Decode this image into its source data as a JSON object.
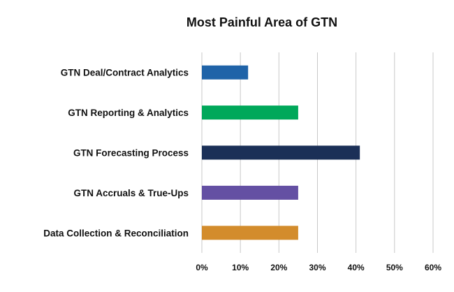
{
  "chart_data": {
    "type": "bar",
    "orientation": "horizontal",
    "title": "Most Painful Area of GTN",
    "categories": [
      "GTN Deal/Contract Analytics",
      "GTN Reporting & Analytics",
      "GTN Forecasting Process",
      "GTN Accruals & True-Ups",
      "Data Collection & Reconciliation"
    ],
    "values": [
      12,
      25,
      41,
      25,
      25
    ],
    "colors": [
      "#1f63a8",
      "#00a85a",
      "#1b3057",
      "#6450a3",
      "#d38c2c"
    ],
    "xlim": [
      0,
      60
    ],
    "x_ticks": [
      "0%",
      "10%",
      "20%",
      "30%",
      "40%",
      "50%",
      "60%"
    ],
    "grid": "vertical",
    "legend": "none"
  }
}
